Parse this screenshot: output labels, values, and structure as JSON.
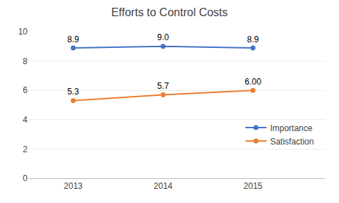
{
  "chart_data": {
    "type": "line",
    "title": "Efforts to Control Costs",
    "x": [
      2013,
      2014,
      2015
    ],
    "series": [
      {
        "name": "Importance",
        "color": "#4472C4",
        "values": [
          8.9,
          9.0,
          8.9
        ],
        "value_labels": [
          "8.9",
          "9.0",
          "8.9"
        ]
      },
      {
        "name": "Satisfaction",
        "color": "#ED7D31",
        "values": [
          5.3,
          5.7,
          6.0
        ],
        "value_labels": [
          "5.3",
          "5.7",
          "6.00"
        ]
      }
    ],
    "xlim": [
      2012.5,
      2015.8
    ],
    "xticks": [
      2013,
      2014,
      2015
    ],
    "ylim": [
      0,
      10
    ],
    "yticks": [
      0,
      2,
      4,
      6,
      8,
      10
    ],
    "grid": true,
    "data_labels": true,
    "legend": "right",
    "marker": "circle"
  }
}
